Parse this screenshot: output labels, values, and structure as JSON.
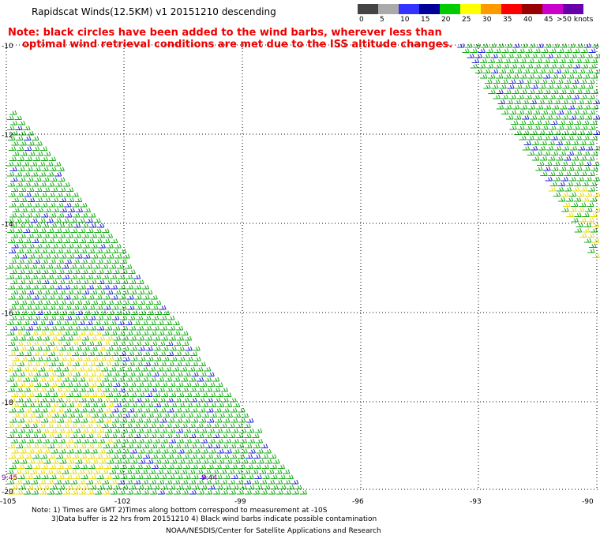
{
  "title": "Rapidscat Winds(12.5KM) v1 20151210 descending",
  "note": {
    "line1": "Note: black circles have been added to the wind barbs, wherever less than",
    "line2": "optimal wind retrieval conditions are met due to the ISS altitude changes."
  },
  "legend": {
    "unit_label": ">50 knots",
    "bins": [
      {
        "label": "0",
        "color": "#444444"
      },
      {
        "label": "5",
        "color": "#aaaaaa"
      },
      {
        "label": "10",
        "color": "#3333ff"
      },
      {
        "label": "15",
        "color": "#000099"
      },
      {
        "label": "20",
        "color": "#00cc00"
      },
      {
        "label": "25",
        "color": "#ffff00"
      },
      {
        "label": "30",
        "color": "#ff9900"
      },
      {
        "label": "35",
        "color": "#ff0000"
      },
      {
        "label": "40",
        "color": "#990000"
      },
      {
        "label": "45",
        "color": "#cc00cc"
      },
      {
        "label": "",
        "color": "#6600aa"
      }
    ]
  },
  "axes": {
    "lat_labels": [
      "-10",
      "-12",
      "-14",
      "-16",
      "-18",
      "-20"
    ],
    "lon_labels": [
      "-105",
      "-102",
      "-99",
      "-96",
      "-93",
      "-90"
    ]
  },
  "time_labels": [
    "9:45",
    "9:44"
  ],
  "footnotes": {
    "line1": "Note: 1) Times are GMT 2)Times along bottom correspond to measurement at -10S",
    "line2": "3)Data buffer is 22 hrs from 20151210 4) Black wind barbs indicate possible contamination",
    "credit": "NOAA/NESDIS/Center for Satellite Applications and Research"
  }
}
